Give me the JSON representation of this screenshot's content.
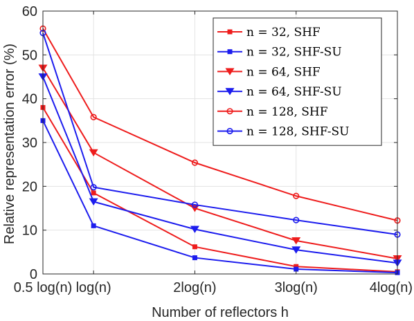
{
  "chart_data": {
    "type": "line",
    "xlabel": "Number of reflectors h",
    "ylabel": "Relative representation error (%)",
    "categories": [
      "0.5 log(n)",
      "log(n)",
      "2log(n)",
      "3log(n)",
      "4log(n)"
    ],
    "x": [
      0.5,
      1,
      2,
      3,
      4
    ],
    "ylim": [
      0,
      60
    ],
    "yticks": [
      0,
      10,
      20,
      30,
      40,
      50,
      60
    ],
    "grid": true,
    "legend_position": "top-right",
    "series": [
      {
        "name": "n = 32, SHF",
        "color": "#ee1c1c",
        "marker": "square",
        "values": [
          38.0,
          18.5,
          6.2,
          1.7,
          0.5
        ]
      },
      {
        "name": "n = 32, SHF-SU",
        "color": "#1c1cee",
        "marker": "square",
        "values": [
          35.0,
          11.0,
          3.7,
          1.1,
          0.3
        ]
      },
      {
        "name": "n = 64, SHF",
        "color": "#ee1c1c",
        "marker": "triangle",
        "values": [
          47.0,
          27.7,
          15.0,
          7.6,
          3.5
        ]
      },
      {
        "name": "n = 64, SHF-SU",
        "color": "#1c1cee",
        "marker": "triangle",
        "values": [
          45.0,
          16.5,
          10.2,
          5.5,
          2.5
        ]
      },
      {
        "name": "n = 128, SHF",
        "color": "#ee1c1c",
        "marker": "circle",
        "values": [
          56.0,
          35.8,
          25.4,
          17.8,
          12.2
        ]
      },
      {
        "name": "n = 128, SHF-SU",
        "color": "#1c1cee",
        "marker": "circle",
        "values": [
          55.0,
          19.8,
          15.8,
          12.3,
          9.0
        ]
      }
    ]
  }
}
